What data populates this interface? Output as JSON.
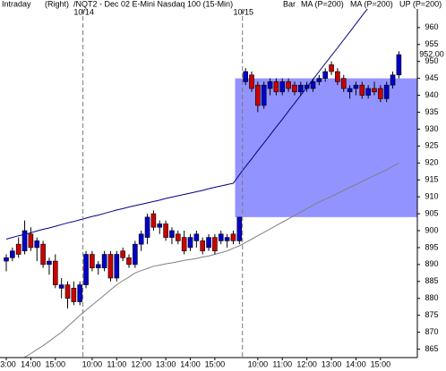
{
  "chart_data": {
    "type": "candlestick",
    "header": [
      "Intraday",
      "(Right)",
      "/NQT2 - Dec 02 E-Mini Nasdaq 100 (15-Min)"
    ],
    "legend": [
      {
        "text": "Bar",
        "color": "#000000"
      },
      {
        "text": "MA (P=200)",
        "color": "#c00000"
      },
      {
        "text": "MA (P=200)",
        "color": "#c00000"
      },
      {
        "text": "UP (P=200)",
        "color": "#0000c0"
      }
    ],
    "categories": [
      "3:00",
      null,
      null,
      null,
      "14:00",
      null,
      null,
      null,
      "15:00",
      null,
      null,
      null,
      null,
      null,
      "10:00",
      null,
      null,
      null,
      "11:00",
      null,
      null,
      null,
      "12:00",
      null,
      null,
      null,
      "13:00",
      null,
      null,
      null,
      "14:00",
      null,
      null,
      null,
      "15:00",
      null,
      null,
      null,
      null,
      null,
      null,
      "10:00",
      null,
      null,
      null,
      "11:00",
      null,
      null,
      null,
      "12:00",
      null,
      null,
      null,
      "13:00",
      null,
      null,
      null,
      "14:00",
      null,
      null,
      null,
      "15:00",
      null,
      null,
      null
    ],
    "open": [
      891,
      892,
      896,
      894,
      899,
      895,
      896,
      890,
      891,
      883,
      884,
      883,
      879,
      884,
      893,
      889,
      889,
      893,
      886,
      894,
      892,
      890,
      896,
      898,
      905,
      901,
      902,
      898,
      899,
      898,
      895,
      897,
      897,
      895,
      898,
      897,
      897,
      899,
      897,
      944,
      946,
      943,
      937,
      942,
      944,
      941,
      944,
      943,
      941,
      942,
      942,
      944,
      945,
      949,
      947,
      945,
      941,
      942,
      943,
      940,
      942,
      942,
      939,
      943,
      946
    ],
    "high": [
      893,
      895,
      898,
      903,
      901,
      898,
      897,
      892,
      893,
      886,
      885,
      885,
      885,
      894,
      894,
      891,
      894,
      894,
      894,
      895,
      893,
      897,
      900,
      905,
      906,
      903,
      903,
      901,
      900,
      900,
      899,
      900,
      898,
      899,
      899,
      900,
      899,
      900,
      904,
      948,
      947,
      944,
      944,
      945,
      945,
      945,
      945,
      944,
      944,
      944,
      945,
      946,
      948,
      950,
      948,
      946,
      943,
      944,
      944,
      943,
      944,
      943,
      944,
      947,
      953
    ],
    "low": [
      888,
      891,
      892,
      893,
      894,
      891,
      889,
      887,
      883,
      880,
      877,
      878,
      878,
      883,
      888,
      887,
      888,
      885,
      885,
      891,
      889,
      889,
      894,
      896,
      900,
      899,
      897,
      896,
      896,
      893,
      894,
      895,
      893,
      894,
      893,
      896,
      895,
      896,
      896,
      943,
      941,
      935,
      936,
      940,
      940,
      940,
      941,
      940,
      940,
      941,
      941,
      943,
      944,
      946,
      943,
      941,
      939,
      940,
      939,
      939,
      940,
      938,
      938,
      942,
      945
    ],
    "close": [
      892,
      894,
      893,
      900,
      895,
      897,
      890,
      891,
      884,
      884,
      880,
      879,
      884,
      893,
      889,
      890,
      893,
      886,
      893,
      892,
      890,
      896,
      899,
      904,
      901,
      902,
      898,
      900,
      897,
      894,
      898,
      899,
      894,
      898,
      894,
      899,
      898,
      897,
      904,
      947,
      942,
      937,
      943,
      944,
      941,
      944,
      942,
      941,
      943,
      943,
      944,
      945,
      947,
      947,
      944,
      942,
      942,
      943,
      940,
      942,
      941,
      939,
      943,
      946,
      952
    ],
    "up_color": "#0000cc",
    "down_color": "#cc0000",
    "last_label": {
      "value": 952,
      "label": "952.00"
    },
    "series": [
      {
        "color": "#00008b",
        "values": [
          897.5,
          898,
          898.5,
          898.9,
          899.4,
          899.9,
          900.4,
          900.8,
          901.3,
          901.8,
          902.3,
          902.7,
          903.2,
          903.7,
          904.2,
          904.6,
          905.1,
          905.6,
          906.1,
          906.5,
          907,
          907.4,
          907.8,
          908.2,
          908.6,
          909,
          909.5,
          909.9,
          910.3,
          910.7,
          911.1,
          911.5,
          911.9,
          912.4,
          912.8,
          913.2,
          913.6,
          914,
          916.5,
          918.9,
          921.2,
          923.6,
          925.9,
          928.3,
          930.6,
          932.9,
          935.3,
          937.6,
          940,
          942.3,
          944.7,
          947,
          949.4,
          951.7,
          954,
          956.4,
          958.7,
          961.1,
          963.5,
          965.8,
          null,
          null,
          null,
          null,
          null
        ]
      },
      {
        "color": "#808080",
        "values": [
          null,
          null,
          null,
          862.6,
          863.7,
          864.9,
          866,
          867.3,
          868.7,
          870,
          871.7,
          873.3,
          875,
          876.5,
          878,
          879.5,
          881,
          882.5,
          884,
          885.2,
          886.3,
          887.5,
          888.2,
          888.8,
          889.5,
          889.8,
          890.2,
          890.5,
          890.8,
          891.2,
          891.5,
          891.8,
          892.2,
          892.5,
          893,
          893.5,
          894,
          894.8,
          895.5,
          896.5,
          897.5,
          898.5,
          899.5,
          900.5,
          901.5,
          902.5,
          903.5,
          904.5,
          905.5,
          906.5,
          907.5,
          908.4,
          909.3,
          910.1,
          911,
          911.9,
          912.8,
          913.6,
          914.5,
          915.4,
          916.3,
          917.1,
          918,
          919,
          920
        ]
      }
    ],
    "zone": {
      "low": 904,
      "high": 945,
      "start": 38,
      "color": "#8080ff"
    },
    "day_breaks": [
      {
        "label": "10/14",
        "before": 13
      },
      {
        "label": "10/15",
        "before": 39
      }
    ],
    "ylim": [
      862.5,
      965.5
    ],
    "yticks": [
      865,
      870,
      875,
      880,
      885,
      890,
      895,
      900,
      905,
      910,
      915,
      920,
      925,
      930,
      935,
      940,
      945,
      950,
      955,
      960
    ]
  }
}
